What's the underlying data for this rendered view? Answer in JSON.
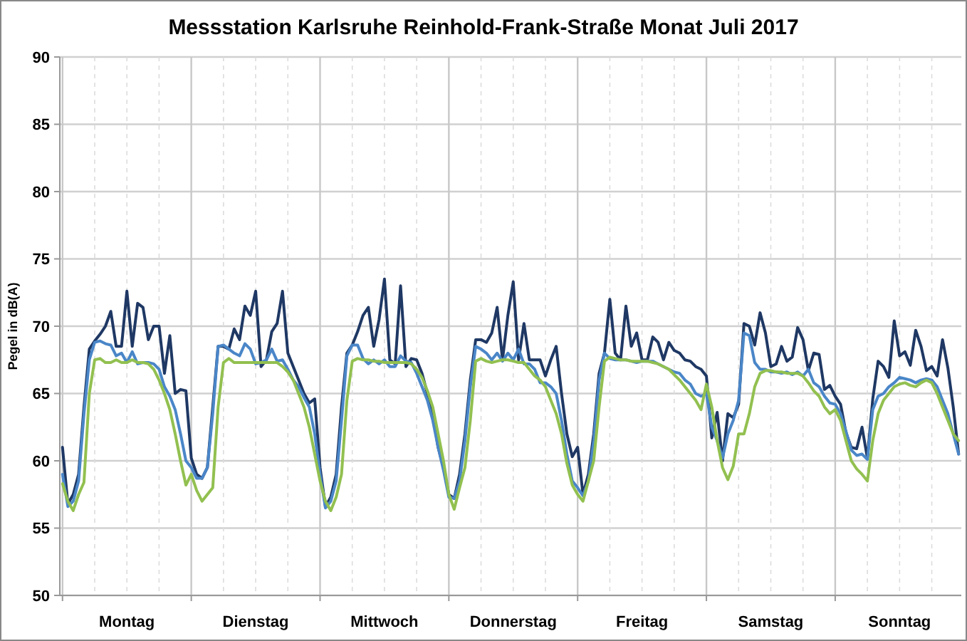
{
  "chart_data": {
    "type": "line",
    "title": "Messstation Karlsruhe Reinhold-Frank-Straße Monat Juli 2017",
    "ylabel": "Pegel in dB(A)",
    "categories": [
      null,
      null,
      null,
      null,
      null,
      null,
      null,
      null,
      null,
      null,
      null,
      null,
      "Montag",
      null,
      null,
      null,
      null,
      null,
      null,
      null,
      null,
      null,
      null,
      null,
      null,
      null,
      null,
      null,
      null,
      null,
      null,
      null,
      null,
      null,
      null,
      null,
      "Dienstag",
      null,
      null,
      null,
      null,
      null,
      null,
      null,
      null,
      null,
      null,
      null,
      null,
      null,
      null,
      null,
      null,
      null,
      null,
      null,
      null,
      null,
      null,
      null,
      "Mittwoch",
      null,
      null,
      null,
      null,
      null,
      null,
      null,
      null,
      null,
      null,
      null,
      null,
      null,
      null,
      null,
      null,
      null,
      null,
      null,
      null,
      null,
      null,
      null,
      "Donnerstag",
      null,
      null,
      null,
      null,
      null,
      null,
      null,
      null,
      null,
      null,
      null,
      null,
      null,
      null,
      null,
      null,
      null,
      null,
      null,
      null,
      null,
      null,
      null,
      "Freitag",
      null,
      null,
      null,
      null,
      null,
      null,
      null,
      null,
      null,
      null,
      null,
      null,
      null,
      null,
      null,
      null,
      null,
      null,
      null,
      null,
      null,
      null,
      null,
      "Samstag",
      null,
      null,
      null,
      null,
      null,
      null,
      null,
      null,
      null,
      null,
      null,
      null,
      null,
      null,
      null,
      null,
      null,
      null,
      null,
      null,
      null,
      null,
      null,
      "Sonntag",
      null,
      null,
      null,
      null,
      null,
      null,
      null,
      null,
      null,
      null,
      null
    ],
    "series": [
      {
        "color": "#1f3864",
        "values": [
          61.0,
          56.8,
          57.5,
          59,
          64,
          68.3,
          68.9,
          69.4,
          70,
          71.1,
          68.5,
          68.5,
          72.6,
          68.5,
          71.7,
          71.4,
          69,
          70,
          70,
          66.5,
          69.3,
          65,
          65.3,
          65.2,
          60.2,
          59,
          58.7,
          59.5,
          64,
          68.5,
          68.5,
          68.3,
          69.8,
          69,
          71.5,
          70.8,
          72.6,
          67,
          67.5,
          69.6,
          70.2,
          72.6,
          68,
          67,
          66,
          65,
          64.3,
          64.6,
          59.5,
          56.6,
          57.3,
          59,
          64,
          68,
          68.6,
          69.6,
          70.8,
          71.4,
          68.5,
          70.5,
          73.5,
          67.5,
          67.2,
          73,
          67,
          67.6,
          67.5,
          66.5,
          65,
          63.5,
          61,
          59.5,
          57.5,
          57.2,
          59,
          62,
          66,
          69,
          69,
          68.8,
          69.5,
          71.4,
          67.5,
          70.8,
          73.3,
          67.5,
          70.2,
          67.5,
          67.5,
          67.5,
          66.3,
          67.5,
          68.5,
          65,
          62,
          60.3,
          61,
          57.5,
          59,
          62,
          66.5,
          68,
          72,
          68,
          67.5,
          71.5,
          68.5,
          69.5,
          67.5,
          67.5,
          69.2,
          68.8,
          67.5,
          68.8,
          68.2,
          68,
          67.5,
          67.4,
          67,
          66.8,
          66.3,
          61.7,
          63.6,
          60,
          63.5,
          63.2,
          64.2,
          70.2,
          70,
          68.6,
          71,
          69.5,
          67,
          67.2,
          68.5,
          67.4,
          67.7,
          69.9,
          69,
          66.7,
          68,
          67.9,
          65.3,
          65.6,
          64.8,
          64.2,
          62.1,
          61,
          60.9,
          62.5,
          60.2,
          64.6,
          67.4,
          67,
          66.2,
          70.4,
          67.8,
          68.1,
          67.1,
          69.7,
          68.5,
          66.7,
          67,
          66.3,
          69,
          66.9,
          64,
          60.5
        ]
      },
      {
        "color": "#4a86c8",
        "values": [
          59,
          56.6,
          57,
          58.5,
          63.5,
          67.5,
          68.8,
          68.9,
          68.7,
          68.6,
          67.8,
          68,
          67.3,
          68.1,
          67.2,
          67.3,
          67.3,
          67.2,
          66.8,
          65.5,
          64.8,
          63.8,
          62,
          60,
          59.5,
          58.7,
          58.7,
          59.5,
          63.5,
          68.5,
          68.6,
          68.3,
          68,
          67.8,
          68.7,
          68.3,
          67.2,
          67.3,
          67.5,
          68.3,
          67.4,
          67.5,
          66.8,
          66,
          65.5,
          64.7,
          64,
          62,
          59,
          56.5,
          57,
          58.5,
          63,
          67.8,
          68.6,
          68.6,
          67.6,
          67.2,
          67.5,
          67.2,
          67.5,
          67,
          67,
          67.8,
          67.4,
          67.3,
          66.5,
          65.5,
          64.5,
          63,
          61,
          59.3,
          57.3,
          57.2,
          58.5,
          61.5,
          65.5,
          68.5,
          68.3,
          68,
          67.5,
          68,
          67.4,
          68,
          67.5,
          68.3,
          67.2,
          67.2,
          66.8,
          65.8,
          65.8,
          65.5,
          65,
          63,
          60.5,
          58.5,
          58,
          57.4,
          58.5,
          61.5,
          66,
          68,
          67.6,
          67.5,
          67.5,
          67.5,
          67.4,
          67.3,
          67.4,
          67.4,
          67.4,
          67.2,
          67,
          66.8,
          66.6,
          66.5,
          66,
          65.7,
          65,
          64.8,
          65,
          62.5,
          61.5,
          60.2,
          62,
          63,
          64.5,
          69.5,
          69.3,
          67.3,
          66.8,
          66.8,
          66.6,
          66.6,
          66.5,
          66.6,
          66.4,
          66.6,
          66.3,
          66.8,
          65.8,
          65.5,
          64.8,
          64.3,
          64.2,
          63.5,
          62.2,
          60.8,
          60.4,
          60.5,
          60.1,
          63.8,
          64.8,
          65,
          65.5,
          65.8,
          66.2,
          66.1,
          66,
          65.8,
          66,
          66.1,
          66,
          65.5,
          64.5,
          63.5,
          62,
          60.5
        ]
      },
      {
        "color": "#92c050",
        "values": [
          58.3,
          57,
          56.3,
          57.5,
          58.4,
          65,
          67.5,
          67.6,
          67.3,
          67.3,
          67.5,
          67.3,
          67.3,
          67.5,
          67.3,
          67.3,
          67.2,
          66.8,
          66,
          65,
          63.8,
          62,
          60,
          58.2,
          59,
          57.8,
          57,
          57.5,
          58,
          64,
          67.3,
          67.6,
          67.3,
          67.3,
          67.3,
          67.3,
          67.3,
          67.3,
          67.3,
          67.3,
          67.3,
          67,
          66.6,
          66,
          65,
          64,
          62.5,
          60.5,
          58.5,
          57,
          56.3,
          57.3,
          59,
          64.5,
          67.4,
          67.6,
          67.5,
          67.5,
          67.4,
          67.4,
          67.3,
          67.3,
          67.3,
          67.3,
          67.3,
          67.2,
          66.8,
          66.2,
          65.2,
          64,
          62,
          60,
          57.5,
          56.4,
          58,
          59.5,
          63,
          67.4,
          67.6,
          67.4,
          67.3,
          67.4,
          67.5,
          67.5,
          67.4,
          67.3,
          67.3,
          66.8,
          66.3,
          66,
          65.5,
          64.5,
          63.5,
          62,
          59.8,
          58.2,
          57.5,
          57,
          58.5,
          60,
          64,
          67.4,
          67.7,
          67.6,
          67.5,
          67.5,
          67.4,
          67.4,
          67.4,
          67.4,
          67.3,
          67.2,
          67,
          66.8,
          66.4,
          66,
          65.5,
          65,
          64.5,
          63.8,
          65.7,
          64,
          61.5,
          59.5,
          58.6,
          59.6,
          62,
          62,
          63.5,
          65.5,
          66.5,
          66.7,
          66.7,
          66.6,
          66.6,
          66.5,
          66.5,
          66.5,
          66.3,
          65.8,
          65.2,
          64.8,
          64,
          63.5,
          63.8,
          63,
          61.5,
          60,
          59.4,
          59,
          58.5,
          61.5,
          63.5,
          64.5,
          65,
          65.5,
          65.7,
          65.8,
          65.6,
          65.5,
          65.8,
          66,
          65.8,
          65,
          64,
          63,
          62,
          61.5
        ]
      }
    ],
    "ylim": [
      50,
      90
    ],
    "yticks": [
      50,
      55,
      60,
      65,
      70,
      75,
      80,
      85,
      90
    ],
    "grid": true,
    "marker": "none",
    "line_style": "solid"
  }
}
